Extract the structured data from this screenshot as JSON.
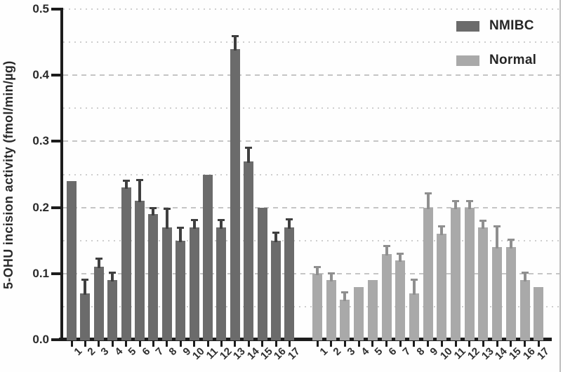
{
  "figure": {
    "y_axis": {
      "title": "5-OHU incision activity (fmol/min/µg)",
      "tick_labels": [
        "0.0",
        "0.1",
        "0.2",
        "0.3",
        "0.4",
        "0.5"
      ],
      "min": 0.0,
      "max": 0.5
    },
    "legend": [
      {
        "label": "NMIBC",
        "color": "#6b6b6b"
      },
      {
        "label": "Normal",
        "color": "#a9a9a9"
      }
    ]
  },
  "chart_data": {
    "type": "bar",
    "title": "",
    "xlabel": "",
    "ylabel": "5-OHU incision activity (fmol/min/µg)",
    "ylim": [
      0.0,
      0.5
    ],
    "grid": {
      "major_step": 0.1,
      "minor_step": 0.05,
      "major_style": "dashed",
      "minor_style": "dotted"
    },
    "legend_position": "top-right",
    "categories": [
      "1",
      "2",
      "3",
      "4",
      "5",
      "6",
      "7",
      "8",
      "9",
      "10",
      "11",
      "12",
      "13",
      "14",
      "15",
      "16",
      "17"
    ],
    "series": [
      {
        "name": "NMIBC",
        "color": "#6b6b6b",
        "error_color": "#3f3f3f",
        "values": [
          0.24,
          0.07,
          0.11,
          0.09,
          0.23,
          0.21,
          0.19,
          0.17,
          0.15,
          0.17,
          0.25,
          0.17,
          0.44,
          0.27,
          0.2,
          0.15,
          0.17
        ],
        "errors": [
          null,
          0.021,
          0.013,
          0.012,
          0.011,
          0.032,
          0.01,
          0.029,
          0.02,
          0.011,
          null,
          0.012,
          0.02,
          0.021,
          null,
          0.012,
          0.013
        ]
      },
      {
        "name": "Normal",
        "color": "#a9a9a9",
        "error_color": "#8f8f8f",
        "values": [
          0.1,
          0.09,
          0.06,
          0.08,
          0.09,
          0.13,
          0.12,
          0.07,
          0.2,
          0.16,
          0.2,
          0.2,
          0.17,
          0.14,
          0.14,
          0.09,
          0.08
        ],
        "errors": [
          0.01,
          0.011,
          0.012,
          null,
          null,
          0.012,
          0.011,
          0.021,
          0.022,
          0.012,
          0.01,
          0.01,
          0.01,
          0.032,
          0.012,
          0.012,
          null
        ]
      }
    ]
  }
}
